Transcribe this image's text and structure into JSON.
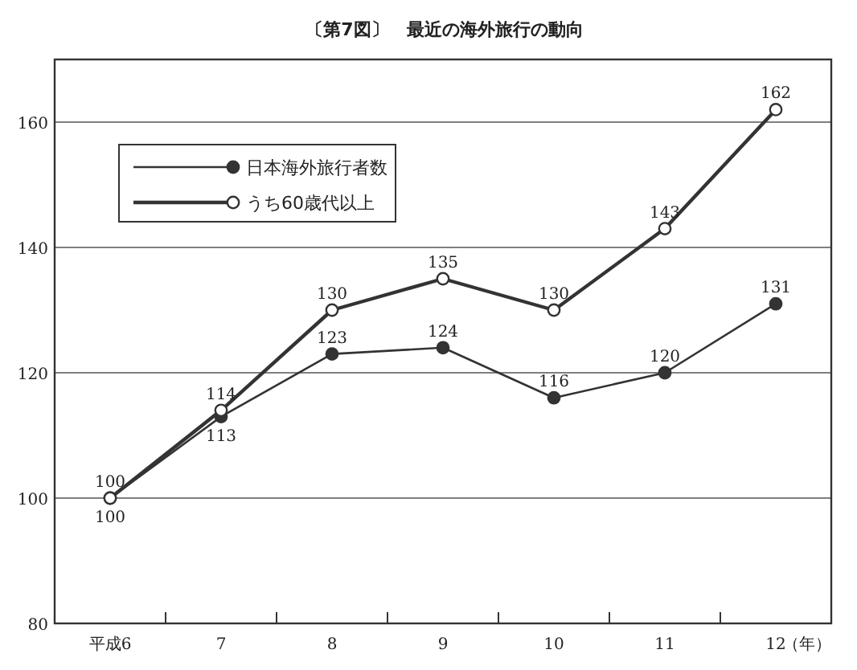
{
  "chart_data": {
    "type": "line",
    "title": "〔第7図〕　最近の海外旅行の動向",
    "xlabel": "（年）",
    "categories": [
      "平成6",
      "7",
      "8",
      "9",
      "10",
      "11",
      "12"
    ],
    "series": [
      {
        "name": "日本海外旅行者数",
        "color": "#333333",
        "marker": "circle",
        "values": [
          100,
          113,
          123,
          124,
          116,
          120,
          131
        ]
      },
      {
        "name": "うち60歳代以上",
        "color": "#333333",
        "marker": "circle",
        "values": [
          100,
          114,
          130,
          135,
          130,
          143,
          162
        ]
      }
    ],
    "ylim": [
      80,
      170
    ],
    "yticks": [
      80,
      100,
      120,
      140,
      160
    ],
    "grid": "y",
    "legend": "top left",
    "data_labels": true
  }
}
